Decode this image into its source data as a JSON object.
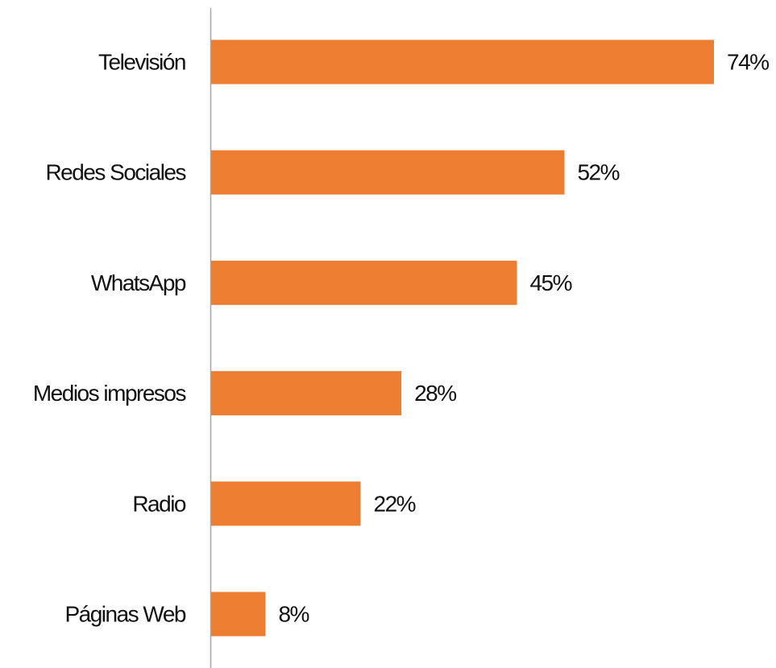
{
  "chart_data": {
    "type": "bar",
    "orientation": "horizontal",
    "categories": [
      "Televisión",
      "Redes Sociales",
      "WhatsApp",
      "Medios impresos",
      "Radio",
      "Páginas Web"
    ],
    "values": [
      74,
      52,
      45,
      28,
      22,
      8
    ],
    "value_labels": [
      "74%",
      "52%",
      "45%",
      "28%",
      "22%",
      "8%"
    ],
    "unit": "%",
    "title": "",
    "xlabel": "",
    "ylabel": "",
    "xlim": [
      0,
      100
    ],
    "grid": false,
    "legend": "none",
    "bar_color": "#ED7D31",
    "axis_color": "#A6A6A6"
  }
}
